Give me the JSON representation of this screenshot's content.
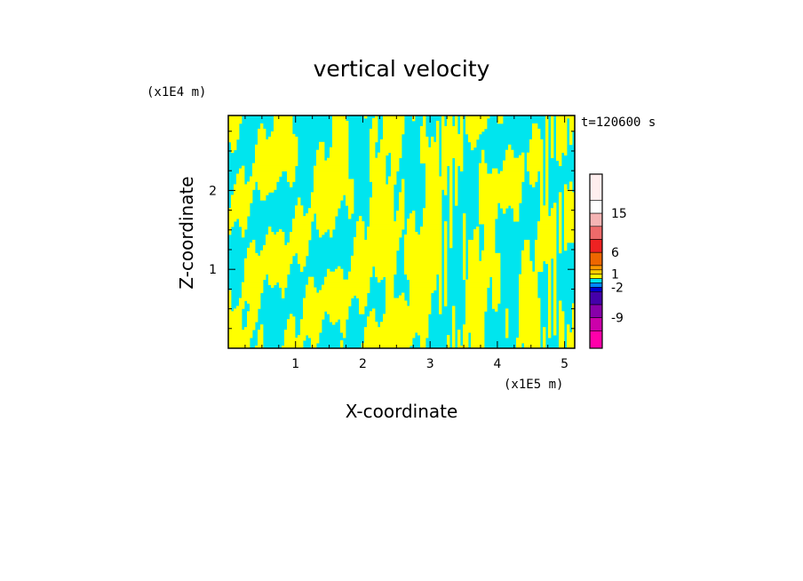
{
  "chart_data": {
    "type": "heatmap",
    "title": "vertical velocity",
    "xlabel": "X-coordinate",
    "ylabel": "Z-coordinate",
    "x_units": "(x1E5 m)",
    "y_units": "(x1E4 m)",
    "time_label": "t=120600 s",
    "xlim": [
      0,
      5.15
    ],
    "ylim": [
      0,
      2.95
    ],
    "x_ticks": [
      1,
      2,
      3,
      4,
      5
    ],
    "y_ticks": [
      1,
      2
    ],
    "field_colors": {
      "positive": "#ffff00",
      "negative": "#00e5ee"
    },
    "colorbar": {
      "labels": [
        {
          "label": "15",
          "value": 15
        },
        {
          "label": "6",
          "value": 6
        },
        {
          "label": "1",
          "value": 1
        },
        {
          "label": "-2",
          "value": -2
        },
        {
          "label": "-9",
          "value": -9
        }
      ],
      "levels": [
        {
          "value": 24,
          "color": "#ffeeee"
        },
        {
          "value": 18,
          "color": "#ffffff"
        },
        {
          "value": 15,
          "color": "#f5b4b4"
        },
        {
          "value": 12,
          "color": "#ee6a6a"
        },
        {
          "value": 9,
          "color": "#ee2222"
        },
        {
          "value": 6,
          "color": "#ee6600"
        },
        {
          "value": 3,
          "color": "#ff9900"
        },
        {
          "value": 2,
          "color": "#ffcc00"
        },
        {
          "value": 1,
          "color": "#ffff00"
        },
        {
          "value": 0,
          "color": "#00e5ee"
        },
        {
          "value": -1,
          "color": "#0088ff"
        },
        {
          "value": -2,
          "color": "#0000cc"
        },
        {
          "value": -3,
          "color": "#4400aa"
        },
        {
          "value": -6,
          "color": "#8800aa"
        },
        {
          "value": -9,
          "color": "#cc00aa"
        },
        {
          "value": -12,
          "color": "#ff00aa"
        }
      ]
    }
  }
}
